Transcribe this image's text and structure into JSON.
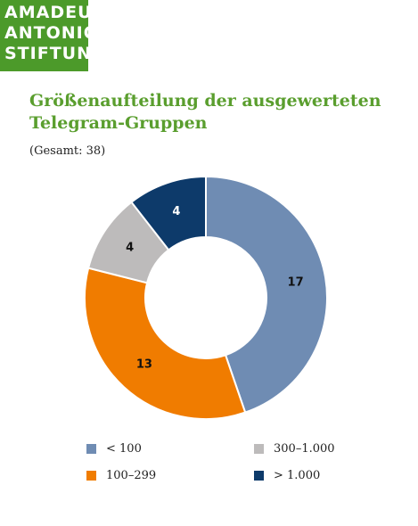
{
  "logo": {
    "lines": [
      "AMADEU",
      "ANTONIO",
      "STIFTUNG"
    ]
  },
  "chart_data": {
    "type": "pie",
    "title_lines": [
      "Größenaufteilung der ausgewerteten",
      "Telegram-Gruppen"
    ],
    "subtitle": "(Gesamt: 38)",
    "slices": [
      {
        "label": "< 100",
        "value": 17,
        "value_label": "17",
        "color": "#6f8cb3",
        "label_color": "#111111"
      },
      {
        "label": "100–299",
        "value": 13,
        "value_label": "13",
        "color": "#f07c00",
        "label_color": "#111111"
      },
      {
        "label": "300–1.000",
        "value": 4,
        "value_label": "4",
        "color": "#bdbbbb",
        "label_color": "#111111"
      },
      {
        "label": "> 1.000",
        "value": 4,
        "value_label": "4",
        "color": "#0d3a6a",
        "label_color": "#ffffff"
      }
    ],
    "legend": {
      "placement": "bottom",
      "columns": 2
    }
  }
}
